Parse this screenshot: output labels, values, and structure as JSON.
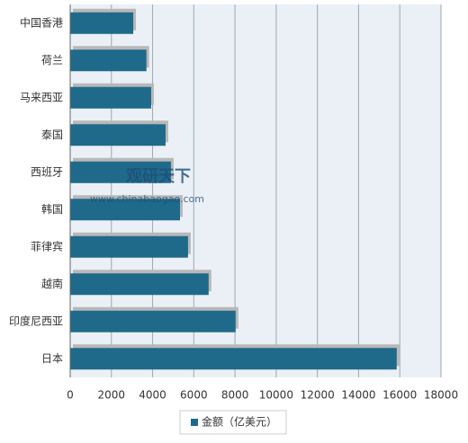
{
  "chart_data": {
    "type": "barh",
    "categories": [
      "中国香港",
      "荷兰",
      "马来西亚",
      "泰国",
      "西班牙",
      "韩国",
      "菲律宾",
      "越南",
      "印度尼西亚",
      "日本"
    ],
    "series": [
      {
        "name": "金额（亿美元）",
        "color": "#1f6a8a",
        "values": [
          3060,
          3700,
          3930,
          4630,
          4890,
          5330,
          5720,
          6720,
          8030,
          15850
        ]
      }
    ],
    "xlim": [
      0,
      18000
    ],
    "xticks": [
      0,
      2000,
      4000,
      6000,
      8000,
      10000,
      12000,
      14000,
      16000,
      18000
    ],
    "grid": true,
    "legend": "bottom",
    "watermark": {
      "brand": "观研天下",
      "url": "www.chinabaogao.com"
    }
  }
}
